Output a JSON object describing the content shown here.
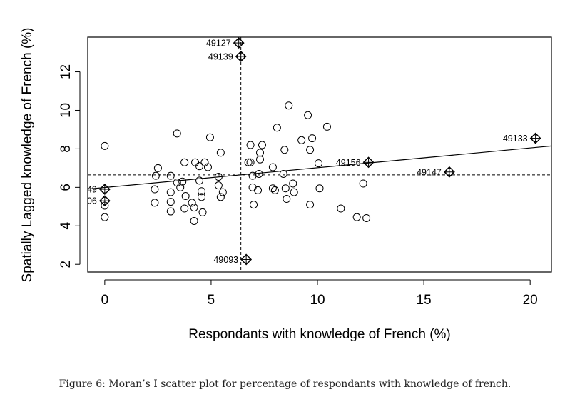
{
  "caption": "Figure 6: Moran’s I scatter plot for percentage of respondants with knowledge of french.",
  "chart_data": {
    "type": "scatter",
    "xlabel": "Respondants with knowledge of French (%)",
    "ylabel": "Spatially Lagged knowledge of French (%)",
    "xlim": [
      -0.8,
      21
    ],
    "ylim": [
      1.6,
      13.8
    ],
    "xticks": [
      0,
      5,
      10,
      15,
      20
    ],
    "yticks": [
      2,
      4,
      6,
      8,
      10,
      12
    ],
    "mean_x": 6.4,
    "mean_y": 6.65,
    "regression_line": {
      "x": [
        -0.8,
        21
      ],
      "y": [
        5.91,
        8.15
      ]
    },
    "points": [
      [
        0.0,
        8.15
      ],
      [
        0.0,
        4.45
      ],
      [
        0.0,
        5.05
      ],
      [
        2.4,
        6.6
      ],
      [
        2.5,
        7.0
      ],
      [
        2.35,
        5.9
      ],
      [
        2.35,
        5.2
      ],
      [
        3.1,
        6.6
      ],
      [
        3.1,
        5.75
      ],
      [
        3.1,
        5.25
      ],
      [
        3.1,
        4.75
      ],
      [
        3.4,
        8.8
      ],
      [
        3.4,
        6.25
      ],
      [
        3.55,
        6.0
      ],
      [
        3.65,
        6.3
      ],
      [
        3.75,
        7.3
      ],
      [
        3.8,
        5.55
      ],
      [
        3.75,
        4.9
      ],
      [
        4.1,
        5.2
      ],
      [
        4.2,
        4.25
      ],
      [
        4.2,
        4.95
      ],
      [
        4.25,
        7.3
      ],
      [
        4.45,
        7.1
      ],
      [
        4.45,
        6.35
      ],
      [
        4.55,
        5.8
      ],
      [
        4.55,
        5.5
      ],
      [
        4.6,
        4.7
      ],
      [
        4.7,
        7.3
      ],
      [
        4.85,
        7.05
      ],
      [
        4.95,
        8.6
      ],
      [
        5.35,
        6.55
      ],
      [
        5.35,
        6.1
      ],
      [
        5.45,
        5.5
      ],
      [
        5.45,
        7.8
      ],
      [
        5.55,
        5.75
      ],
      [
        6.75,
        7.3
      ],
      [
        6.85,
        8.2
      ],
      [
        6.85,
        7.3
      ],
      [
        6.95,
        6.6
      ],
      [
        6.95,
        6.0
      ],
      [
        7.0,
        5.1
      ],
      [
        7.2,
        5.85
      ],
      [
        7.25,
        6.7
      ],
      [
        7.3,
        7.8
      ],
      [
        7.3,
        7.45
      ],
      [
        7.4,
        8.2
      ],
      [
        7.9,
        5.95
      ],
      [
        7.9,
        7.05
      ],
      [
        8.0,
        5.85
      ],
      [
        8.1,
        9.1
      ],
      [
        8.4,
        6.7
      ],
      [
        8.45,
        7.95
      ],
      [
        8.5,
        5.95
      ],
      [
        8.55,
        5.4
      ],
      [
        8.65,
        10.25
      ],
      [
        8.85,
        6.2
      ],
      [
        8.9,
        5.75
      ],
      [
        9.25,
        8.45
      ],
      [
        9.55,
        9.75
      ],
      [
        9.65,
        7.95
      ],
      [
        9.65,
        5.1
      ],
      [
        9.75,
        8.55
      ],
      [
        10.05,
        7.25
      ],
      [
        10.1,
        5.95
      ],
      [
        10.45,
        9.15
      ],
      [
        11.1,
        4.9
      ],
      [
        11.85,
        4.45
      ],
      [
        12.15,
        6.2
      ],
      [
        12.3,
        4.4
      ]
    ],
    "influential": [
      {
        "x": 6.3,
        "y": 13.5,
        "label": "49127",
        "label_side": "left"
      },
      {
        "x": 6.4,
        "y": 12.8,
        "label": "49139",
        "label_side": "left"
      },
      {
        "x": 6.65,
        "y": 2.25,
        "label": "49093",
        "label_side": "left"
      },
      {
        "x": 12.4,
        "y": 7.3,
        "label": "49156",
        "label_side": "left"
      },
      {
        "x": 16.2,
        "y": 6.8,
        "label": "49147",
        "label_side": "left"
      },
      {
        "x": 20.25,
        "y": 8.55,
        "label": "49133",
        "label_side": "left"
      },
      {
        "x": 0.0,
        "y": 5.9,
        "label": "49",
        "label_side": "left"
      },
      {
        "x": 0.0,
        "y": 5.3,
        "label": "06",
        "label_side": "left"
      }
    ]
  }
}
